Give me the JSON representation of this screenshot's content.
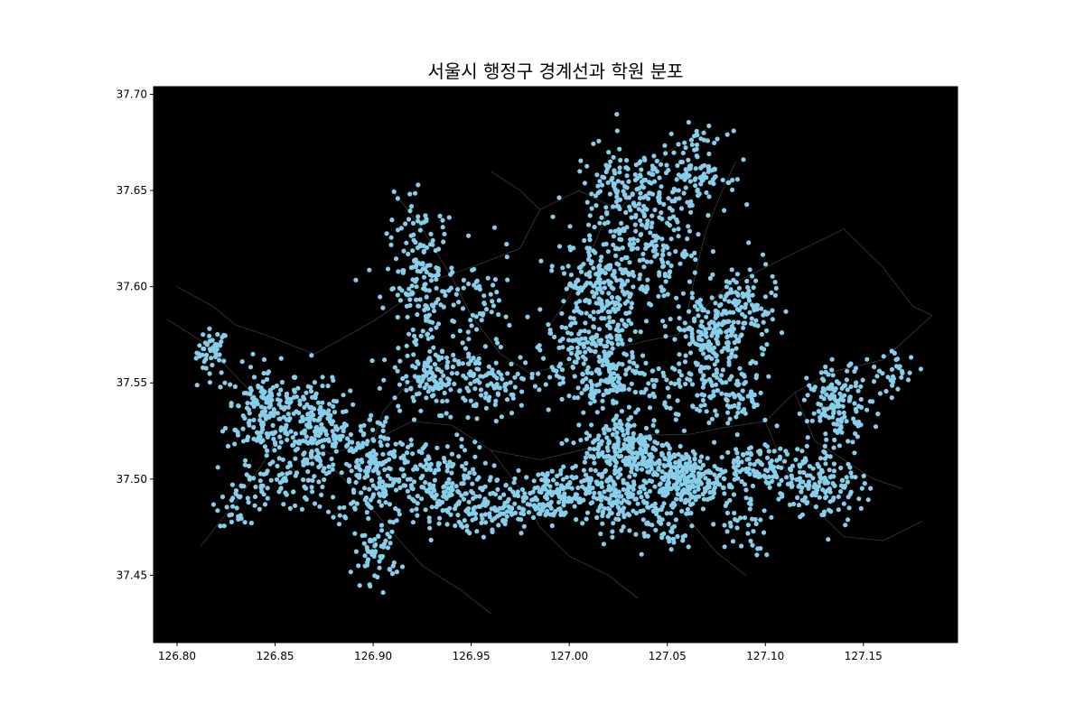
{
  "chart_data": {
    "type": "scatter",
    "title": "서울시 행정구 경계선과 학원 분포",
    "xlabel": "",
    "ylabel": "",
    "xlim": [
      126.788,
      127.198
    ],
    "ylim": [
      37.415,
      37.704
    ],
    "x_ticks": [
      126.8,
      126.85,
      126.9,
      126.95,
      127.0,
      127.05,
      127.1,
      127.15
    ],
    "x_tick_labels": [
      "126.80",
      "126.85",
      "126.90",
      "126.95",
      "127.00",
      "127.05",
      "127.10",
      "127.15"
    ],
    "y_ticks": [
      37.45,
      37.5,
      37.55,
      37.6,
      37.65,
      37.7
    ],
    "y_tick_labels": [
      "37.45",
      "37.50",
      "37.55",
      "37.60",
      "37.65",
      "37.70"
    ],
    "grid": false,
    "legend": "none",
    "colors": {
      "background": "#000000",
      "boundary": "#3a3a3a",
      "points": "#87ceeb",
      "frame": "#000000"
    },
    "boundaries": [
      [
        [
          126.795,
          37.583
        ],
        [
          126.815,
          37.57
        ],
        [
          126.835,
          37.548
        ],
        [
          126.855,
          37.528
        ],
        [
          126.878,
          37.513
        ],
        [
          126.9,
          37.52
        ],
        [
          126.92,
          37.53
        ],
        [
          126.94,
          37.528
        ],
        [
          126.96,
          37.515
        ],
        [
          126.985,
          37.51
        ],
        [
          127.01,
          37.516
        ],
        [
          127.035,
          37.523
        ],
        [
          127.06,
          37.523
        ],
        [
          127.08,
          37.527
        ],
        [
          127.1,
          37.53
        ],
        [
          127.115,
          37.545
        ],
        [
          127.135,
          37.556
        ],
        [
          127.16,
          37.562
        ],
        [
          127.185,
          37.585
        ]
      ],
      [
        [
          126.845,
          37.575
        ],
        [
          126.87,
          37.565
        ],
        [
          126.9,
          37.582
        ],
        [
          126.93,
          37.603
        ],
        [
          126.955,
          37.612
        ],
        [
          126.975,
          37.62
        ],
        [
          126.985,
          37.64
        ],
        [
          127.005,
          37.65
        ],
        [
          127.025,
          37.64
        ],
        [
          127.04,
          37.655
        ],
        [
          127.05,
          37.67
        ],
        [
          127.07,
          37.682
        ]
      ],
      [
        [
          126.91,
          37.65
        ],
        [
          126.925,
          37.63
        ],
        [
          126.94,
          37.605
        ],
        [
          126.95,
          37.585
        ],
        [
          126.965,
          37.565
        ],
        [
          126.98,
          37.555
        ],
        [
          127.0,
          37.56
        ],
        [
          127.02,
          37.567
        ],
        [
          127.04,
          37.572
        ],
        [
          127.055,
          37.575
        ],
        [
          127.065,
          37.585
        ],
        [
          127.08,
          37.6
        ],
        [
          127.1,
          37.61
        ],
        [
          127.12,
          37.62
        ]
      ],
      [
        [
          126.88,
          37.505
        ],
        [
          126.895,
          37.49
        ],
        [
          126.91,
          37.472
        ],
        [
          126.925,
          37.455
        ],
        [
          126.945,
          37.442
        ],
        [
          126.96,
          37.43
        ]
      ],
      [
        [
          126.96,
          37.515
        ],
        [
          126.975,
          37.495
        ],
        [
          126.985,
          37.475
        ],
        [
          127.0,
          37.46
        ],
        [
          127.02,
          37.45
        ],
        [
          127.035,
          37.438
        ]
      ],
      [
        [
          127.035,
          37.523
        ],
        [
          127.048,
          37.5
        ],
        [
          127.06,
          37.48
        ],
        [
          127.075,
          37.462
        ],
        [
          127.09,
          37.45
        ]
      ],
      [
        [
          127.1,
          37.53
        ],
        [
          127.11,
          37.505
        ],
        [
          127.125,
          37.485
        ],
        [
          127.14,
          37.47
        ],
        [
          127.16,
          37.468
        ],
        [
          127.18,
          37.478
        ]
      ],
      [
        [
          126.99,
          37.58
        ],
        [
          127.0,
          37.595
        ],
        [
          127.01,
          37.615
        ],
        [
          127.018,
          37.635
        ],
        [
          127.03,
          37.655
        ]
      ],
      [
        [
          127.06,
          37.585
        ],
        [
          127.065,
          37.61
        ],
        [
          127.07,
          37.63
        ],
        [
          127.078,
          37.65
        ],
        [
          127.085,
          37.665
        ]
      ],
      [
        [
          126.855,
          37.528
        ],
        [
          126.845,
          37.51
        ],
        [
          126.835,
          37.495
        ],
        [
          126.822,
          37.478
        ],
        [
          126.812,
          37.465
        ]
      ],
      [
        [
          126.9,
          37.52
        ],
        [
          126.905,
          37.535
        ],
        [
          126.918,
          37.55
        ],
        [
          126.935,
          37.56
        ],
        [
          126.955,
          37.565
        ]
      ],
      [
        [
          127.115,
          37.545
        ],
        [
          127.125,
          37.52
        ],
        [
          127.14,
          37.51
        ],
        [
          127.155,
          37.5
        ],
        [
          127.17,
          37.495
        ]
      ],
      [
        [
          126.8,
          37.6
        ],
        [
          126.818,
          37.59
        ],
        [
          126.83,
          37.58
        ],
        [
          126.845,
          37.575
        ]
      ],
      [
        [
          126.96,
          37.66
        ],
        [
          126.975,
          37.65
        ],
        [
          126.985,
          37.64
        ]
      ],
      [
        [
          127.12,
          37.62
        ],
        [
          127.14,
          37.63
        ],
        [
          127.16,
          37.61
        ],
        [
          127.175,
          37.59
        ],
        [
          127.185,
          37.585
        ]
      ]
    ],
    "clusters": [
      {
        "x": 126.818,
        "y": 37.566,
        "sx": 0.004,
        "sy": 0.006,
        "n": 45
      },
      {
        "x": 126.845,
        "y": 37.535,
        "sx": 0.01,
        "sy": 0.012,
        "n": 190
      },
      {
        "x": 126.872,
        "y": 37.525,
        "sx": 0.008,
        "sy": 0.012,
        "n": 170
      },
      {
        "x": 126.855,
        "y": 37.498,
        "sx": 0.012,
        "sy": 0.008,
        "n": 70
      },
      {
        "x": 126.832,
        "y": 37.488,
        "sx": 0.006,
        "sy": 0.006,
        "n": 30
      },
      {
        "x": 126.9,
        "y": 37.505,
        "sx": 0.012,
        "sy": 0.015,
        "n": 220
      },
      {
        "x": 126.935,
        "y": 37.495,
        "sx": 0.012,
        "sy": 0.012,
        "n": 170
      },
      {
        "x": 126.902,
        "y": 37.462,
        "sx": 0.006,
        "sy": 0.008,
        "n": 55
      },
      {
        "x": 126.925,
        "y": 37.6,
        "sx": 0.009,
        "sy": 0.022,
        "n": 200
      },
      {
        "x": 126.935,
        "y": 37.552,
        "sx": 0.012,
        "sy": 0.008,
        "n": 130
      },
      {
        "x": 126.955,
        "y": 37.59,
        "sx": 0.008,
        "sy": 0.014,
        "n": 50
      },
      {
        "x": 126.962,
        "y": 37.548,
        "sx": 0.01,
        "sy": 0.008,
        "n": 70
      },
      {
        "x": 126.99,
        "y": 37.492,
        "sx": 0.01,
        "sy": 0.007,
        "n": 150
      },
      {
        "x": 126.962,
        "y": 37.485,
        "sx": 0.01,
        "sy": 0.007,
        "n": 90
      },
      {
        "x": 127.03,
        "y": 37.515,
        "sx": 0.012,
        "sy": 0.01,
        "n": 250
      },
      {
        "x": 127.058,
        "y": 37.5,
        "sx": 0.01,
        "sy": 0.007,
        "n": 220
      },
      {
        "x": 127.02,
        "y": 37.49,
        "sx": 0.012,
        "sy": 0.008,
        "n": 130
      },
      {
        "x": 127.045,
        "y": 37.478,
        "sx": 0.01,
        "sy": 0.008,
        "n": 60
      },
      {
        "x": 127.01,
        "y": 37.555,
        "sx": 0.01,
        "sy": 0.012,
        "n": 110
      },
      {
        "x": 127.025,
        "y": 37.56,
        "sx": 0.008,
        "sy": 0.01,
        "n": 80
      },
      {
        "x": 127.015,
        "y": 37.6,
        "sx": 0.01,
        "sy": 0.015,
        "n": 220
      },
      {
        "x": 127.045,
        "y": 37.615,
        "sx": 0.012,
        "sy": 0.015,
        "n": 140
      },
      {
        "x": 127.03,
        "y": 37.65,
        "sx": 0.014,
        "sy": 0.012,
        "n": 160
      },
      {
        "x": 127.065,
        "y": 37.66,
        "sx": 0.008,
        "sy": 0.01,
        "n": 110
      },
      {
        "x": 127.072,
        "y": 37.575,
        "sx": 0.01,
        "sy": 0.01,
        "n": 170
      },
      {
        "x": 127.082,
        "y": 37.545,
        "sx": 0.01,
        "sy": 0.012,
        "n": 110
      },
      {
        "x": 127.09,
        "y": 37.59,
        "sx": 0.008,
        "sy": 0.012,
        "n": 90
      },
      {
        "x": 127.05,
        "y": 37.548,
        "sx": 0.01,
        "sy": 0.006,
        "n": 50
      },
      {
        "x": 127.138,
        "y": 37.54,
        "sx": 0.008,
        "sy": 0.009,
        "n": 140
      },
      {
        "x": 127.165,
        "y": 37.555,
        "sx": 0.006,
        "sy": 0.006,
        "n": 30
      },
      {
        "x": 127.1,
        "y": 37.506,
        "sx": 0.012,
        "sy": 0.006,
        "n": 120
      },
      {
        "x": 127.13,
        "y": 37.498,
        "sx": 0.01,
        "sy": 0.01,
        "n": 130
      },
      {
        "x": 127.088,
        "y": 37.478,
        "sx": 0.008,
        "sy": 0.008,
        "n": 40
      },
      {
        "x": 127.0,
        "y": 37.57,
        "sx": 0.012,
        "sy": 0.006,
        "n": 40
      }
    ]
  }
}
